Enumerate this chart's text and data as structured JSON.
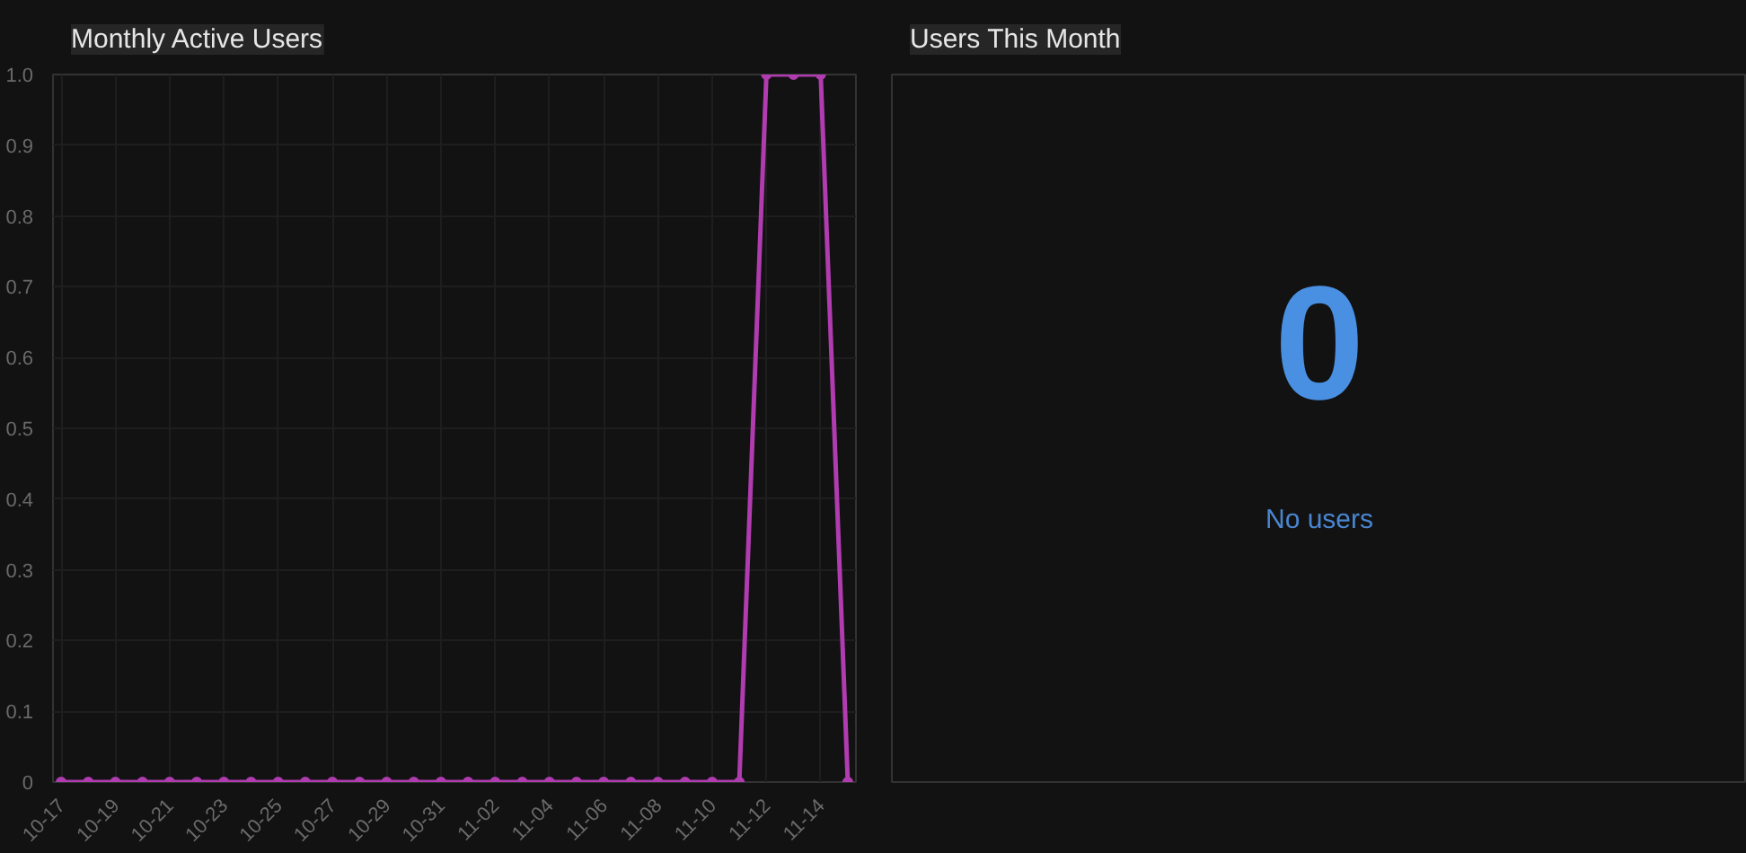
{
  "chart_data": [
    {
      "type": "line",
      "title": "Monthly Active Users",
      "categories": [
        "10-17",
        null,
        "10-19",
        null,
        "10-21",
        null,
        "10-23",
        null,
        "10-25",
        null,
        "10-27",
        null,
        "10-29",
        null,
        "10-31",
        null,
        "11-02",
        null,
        "11-04",
        null,
        "11-06",
        null,
        "11-08",
        null,
        "11-10",
        null,
        "11-12",
        null,
        "11-14",
        null
      ],
      "series": [
        {
          "color": "#b03cb0",
          "values": [
            0,
            0,
            0,
            0,
            0,
            0,
            0,
            0,
            0,
            0,
            0,
            0,
            0,
            0,
            0,
            0,
            0,
            0,
            0,
            0,
            0,
            0,
            0,
            0,
            0,
            0,
            1,
            1,
            1,
            0
          ]
        }
      ],
      "ylim": [
        0,
        1
      ],
      "yticks": [
        0,
        0.1,
        0.2,
        0.3,
        0.4,
        0.5,
        0.6,
        0.7,
        0.8,
        0.9,
        {
          "value": 1,
          "label": "1.0"
        }
      ],
      "grid": true,
      "marker": "circle",
      "line_style": "solid"
    },
    {
      "type": "other",
      "title": "Users This Month",
      "annotations": [
        "0",
        "No users"
      ]
    }
  ]
}
